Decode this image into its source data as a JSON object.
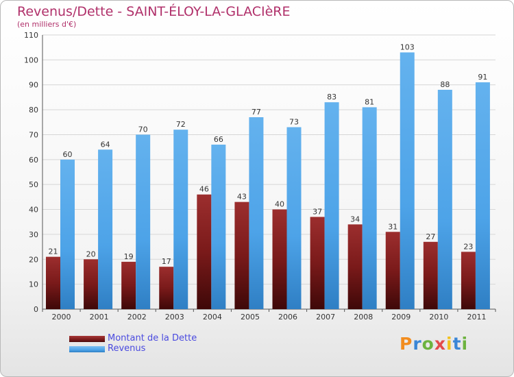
{
  "title": "Revenus/Dette - SAINT-ÉLOY-LA-GLACIèRE",
  "subtitle": "(en milliers d'€)",
  "logo": {
    "text": "Proxiti",
    "letter_colors": [
      "#f28c1e",
      "#3a86d6",
      "#6db33f",
      "#e34b4b",
      "#f2c21e",
      "#3a86d6",
      "#6db33f"
    ]
  },
  "colors": {
    "dette": "#7a1a1a",
    "revenus": "#4da3e8",
    "grid": "#d6d6d6",
    "axis": "#555555"
  },
  "chart_data": {
    "type": "bar",
    "title": "Revenus/Dette - SAINT-ÉLOY-LA-GLACIèRE",
    "ylabel": "(en milliers d'€)",
    "xlabel": "",
    "ylim": [
      0,
      110
    ],
    "yticks": [
      0,
      10,
      20,
      30,
      40,
      50,
      60,
      70,
      80,
      90,
      100,
      110
    ],
    "grid": true,
    "legend_position": "bottom-left",
    "categories": [
      "2000",
      "2001",
      "2002",
      "2003",
      "2004",
      "2005",
      "2006",
      "2007",
      "2008",
      "2009",
      "2010",
      "2011"
    ],
    "series": [
      {
        "name": "Montant de la Dette",
        "key": "dette",
        "values": [
          21,
          20,
          19,
          17,
          46,
          43,
          40,
          37,
          34,
          31,
          27,
          23
        ]
      },
      {
        "name": "Revenus",
        "key": "revenus",
        "values": [
          60,
          64,
          70,
          72,
          66,
          77,
          73,
          83,
          81,
          103,
          88,
          91
        ]
      }
    ]
  }
}
